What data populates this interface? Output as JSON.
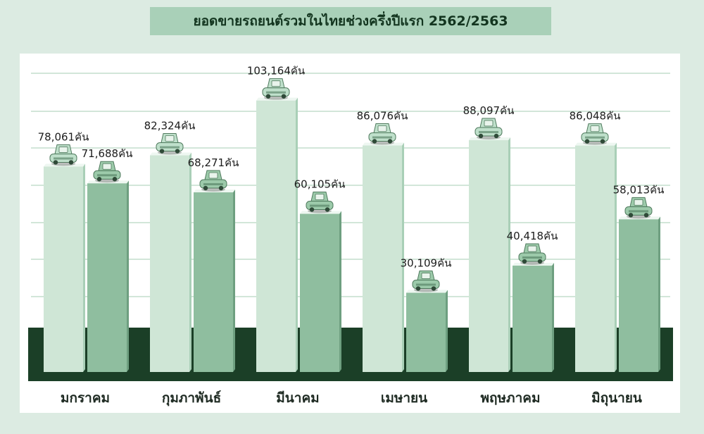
{
  "chart_data": {
    "type": "bar",
    "title": "ยอดขายรถยนต์รวมในไทยช่วงครึ่งปีแรก 2562/2563",
    "categories": [
      "มกราคม",
      "กุมภาพันธ์",
      "มีนาคม",
      "เมษายน",
      "พฤษภาคม",
      "มิถุนายน"
    ],
    "unit": "คัน",
    "series": [
      {
        "values": [
          78061,
          82324,
          103164,
          86076,
          88097,
          86048
        ],
        "labels": [
          "78,061คัน",
          "82,324คัน",
          "103,164คัน",
          "86,076คัน",
          "88,097คัน",
          "86,048คัน"
        ]
      },
      {
        "values": [
          71688,
          68271,
          60105,
          30109,
          40418,
          58013
        ],
        "labels": [
          "71,688คัน",
          "68,271คัน",
          "60,105คัน",
          "30,109คัน",
          "40,418คัน",
          "58,013คัน"
        ]
      }
    ],
    "colors": {
      "series1": "#cfe6d6",
      "series2": "#8fbe9f",
      "base": "#1b3f27",
      "grid": "#b8d6c2",
      "background": "#dcebe2"
    },
    "icons": [
      "car-icon"
    ],
    "grid": true,
    "legend": "none"
  }
}
